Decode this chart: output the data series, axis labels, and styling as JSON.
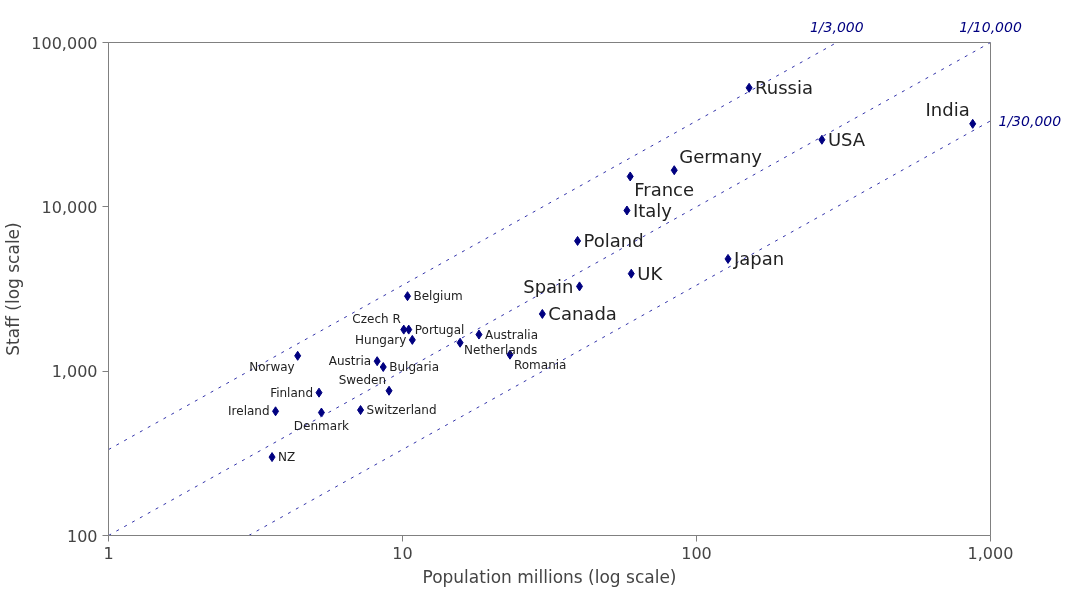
{
  "chart_data": {
    "type": "scatter",
    "xlabel": "Population millions (log scale)",
    "ylabel": "Staff (log scale)",
    "log": "xy",
    "grid": false,
    "legend": false,
    "marker": "diamond",
    "xlim": [
      1,
      1000
    ],
    "ylim": [
      100,
      100000
    ],
    "xticks": [
      1,
      10,
      100,
      {
        "value": 1000,
        "label": "1,000"
      }
    ],
    "yticks": [
      100,
      {
        "value": 1000,
        "label": "1,000"
      },
      {
        "value": 10000,
        "label": "10,000"
      },
      {
        "value": 100000,
        "label": "100,000"
      }
    ],
    "series": [
      {
        "color": "#000080",
        "x": [
          151,
          870,
          267,
          84,
          59.5,
          58,
          39.4,
          40,
          60,
          128,
          29.9,
          10.4,
          10.1,
          10.5,
          10.8,
          18.2,
          15.7,
          23.2,
          4.4,
          8.2,
          8.6,
          9.0,
          5.2,
          3.7,
          5.3,
          7.2,
          3.6
        ],
        "values": [
          53000,
          32000,
          25600,
          16700,
          15300,
          9500,
          6200,
          3280,
          3920,
          4820,
          2230,
          2860,
          1790,
          1790,
          1550,
          1670,
          1490,
          1260,
          1240,
          1150,
          1060,
          760,
          740,
          570,
          560,
          580,
          300
        ]
      },
      {
        "name": "1/3,000",
        "type": "line",
        "marker": "none",
        "line_style": "dashed",
        "color": "#3333aa",
        "x": [
          1,
          300
        ],
        "values": [
          333.3,
          100000
        ]
      },
      {
        "name": "1/10,000",
        "type": "line",
        "marker": "none",
        "line_style": "dashed",
        "color": "#3333aa",
        "x": [
          1,
          1000
        ],
        "values": [
          100,
          100000
        ]
      },
      {
        "name": "1/30,000",
        "type": "line",
        "marker": "none",
        "line_style": "dashed",
        "color": "#3333aa",
        "x": [
          3,
          1000
        ],
        "values": [
          100,
          33333
        ]
      }
    ],
    "annotations": [
      {
        "text": "Russia",
        "x": 151,
        "y": 53000
      },
      {
        "text": "India",
        "x": 870,
        "y": 32000
      },
      {
        "text": "USA",
        "x": 267,
        "y": 25600
      },
      {
        "text": "Germany",
        "x": 84,
        "y": 16700
      },
      {
        "text": "France",
        "x": 59.5,
        "y": 15300
      },
      {
        "text": "Italy",
        "x": 58,
        "y": 9500
      },
      {
        "text": "Poland",
        "x": 39.4,
        "y": 6200
      },
      {
        "text": "Spain",
        "x": 40,
        "y": 3280
      },
      {
        "text": "UK",
        "x": 60,
        "y": 3920
      },
      {
        "text": "Japan",
        "x": 128,
        "y": 4820
      },
      {
        "text": "Canada",
        "x": 29.9,
        "y": 2230
      },
      {
        "text": "Belgium",
        "x": 10.4,
        "y": 2860
      },
      {
        "text": "Czech R",
        "x": 10.1,
        "y": 1790
      },
      {
        "text": "Portugal",
        "x": 10.5,
        "y": 1790
      },
      {
        "text": "Hungary",
        "x": 10.8,
        "y": 1550
      },
      {
        "text": "Australia",
        "x": 18.2,
        "y": 1670
      },
      {
        "text": "Netherlands",
        "x": 15.7,
        "y": 1490
      },
      {
        "text": "Romania",
        "x": 23.2,
        "y": 1260
      },
      {
        "text": "Norway",
        "x": 4.4,
        "y": 1240
      },
      {
        "text": "Austria",
        "x": 8.2,
        "y": 1150
      },
      {
        "text": "Bulgaria",
        "x": 8.6,
        "y": 1060
      },
      {
        "text": "Sweden",
        "x": 9.0,
        "y": 760
      },
      {
        "text": "Finland",
        "x": 5.2,
        "y": 740
      },
      {
        "text": "Ireland",
        "x": 3.7,
        "y": 570
      },
      {
        "text": "Denmark",
        "x": 5.3,
        "y": 560
      },
      {
        "text": "Switzerland",
        "x": 7.2,
        "y": 580
      },
      {
        "text": "NZ",
        "x": 3.6,
        "y": 300
      }
    ]
  }
}
